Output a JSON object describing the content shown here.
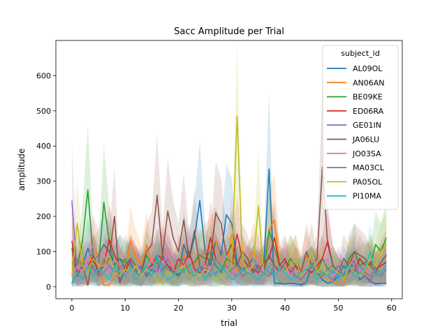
{
  "chart_data": {
    "type": "line",
    "title": "Sacc Amplitude per Trial",
    "xlabel": "trial",
    "ylabel": "amplitude",
    "xlim": [
      -3,
      62
    ],
    "ylim": [
      -34,
      700
    ],
    "xticks": [
      0,
      10,
      20,
      30,
      40,
      50,
      60
    ],
    "yticks": [
      0,
      100,
      200,
      300,
      400,
      500,
      600
    ],
    "grid": false,
    "confidence_band": true,
    "legend": {
      "title": "subject_id",
      "placement": "top-right"
    },
    "x": [
      0,
      1,
      2,
      3,
      4,
      5,
      6,
      7,
      8,
      9,
      10,
      11,
      12,
      13,
      14,
      15,
      16,
      17,
      18,
      19,
      20,
      21,
      22,
      23,
      24,
      25,
      26,
      27,
      28,
      29,
      30,
      31,
      32,
      33,
      34,
      35,
      36,
      37,
      38,
      39,
      40,
      41,
      42,
      43,
      44,
      45,
      46,
      47,
      48,
      49,
      50,
      51,
      52,
      53,
      54,
      55,
      56,
      57,
      58,
      59
    ],
    "series": [
      {
        "name": "AL09OL",
        "color": "#1f77b4",
        "values": [
          10,
          40,
          60,
          110,
          70,
          90,
          120,
          100,
          60,
          80,
          50,
          70,
          40,
          60,
          30,
          50,
          40,
          90,
          60,
          50,
          30,
          120,
          80,
          140,
          245,
          100,
          60,
          130,
          90,
          205,
          180,
          70,
          40,
          60,
          80,
          50,
          60,
          335,
          10,
          10,
          8,
          10,
          8,
          6,
          12,
          60,
          40,
          20,
          10,
          15,
          30,
          60,
          40,
          80,
          20,
          30,
          15,
          8,
          10,
          10
        ]
      },
      {
        "name": "AN06AN",
        "color": "#ff7f0e",
        "values": [
          60,
          50,
          80,
          40,
          110,
          90,
          5,
          5,
          30,
          60,
          40,
          130,
          90,
          60,
          120,
          70,
          50,
          100,
          80,
          60,
          40,
          90,
          50,
          60,
          80,
          100,
          110,
          130,
          80,
          60,
          150,
          40,
          70,
          60,
          100,
          80,
          50,
          160,
          190,
          60,
          40,
          80,
          60,
          50,
          90,
          40,
          60,
          30,
          20,
          15,
          10,
          8,
          80,
          60,
          40,
          30,
          80,
          50,
          60,
          70
        ]
      },
      {
        "name": "BE09KE",
        "color": "#2ca02c",
        "values": [
          70,
          60,
          130,
          275,
          80,
          60,
          240,
          130,
          60,
          80,
          70,
          60,
          50,
          40,
          90,
          60,
          70,
          50,
          60,
          40,
          30,
          50,
          60,
          70,
          90,
          80,
          100,
          60,
          40,
          80,
          70,
          60,
          50,
          40,
          60,
          50,
          40,
          160,
          110,
          60,
          50,
          80,
          60,
          40,
          50,
          60,
          40,
          80,
          50,
          60,
          40,
          30,
          80,
          100,
          60,
          70,
          60,
          120,
          100,
          140
        ]
      },
      {
        "name": "ED06RA",
        "color": "#d62728",
        "values": [
          130,
          40,
          20,
          60,
          80,
          40,
          60,
          135,
          90,
          60,
          40,
          80,
          60,
          40,
          50,
          60,
          90,
          80,
          60,
          40,
          80,
          60,
          100,
          50,
          40,
          60,
          140,
          80,
          60,
          40,
          60,
          150,
          80,
          60,
          50,
          40,
          70,
          80,
          140,
          60,
          80,
          40,
          60,
          30,
          50,
          40,
          60,
          80,
          130,
          60,
          40,
          30,
          50,
          40,
          80,
          60,
          70,
          50,
          60,
          70
        ]
      },
      {
        "name": "GE01IN",
        "color": "#9467bd",
        "values": [
          245,
          40,
          60,
          70,
          50,
          30,
          40,
          60,
          45,
          20,
          40,
          30,
          60,
          50,
          40,
          30,
          60,
          40,
          80,
          50,
          40,
          60,
          30,
          40,
          50,
          60,
          30,
          40,
          50,
          60,
          40,
          30,
          50,
          60,
          40,
          50,
          60,
          40,
          30,
          50,
          60,
          40,
          30,
          20,
          40,
          60,
          50,
          40,
          30,
          20,
          40,
          30,
          50,
          60,
          40,
          30,
          20,
          40,
          30,
          50
        ]
      },
      {
        "name": "JA06LU",
        "color": "#8c564b",
        "values": [
          110,
          30,
          60,
          5,
          90,
          40,
          60,
          80,
          200,
          10,
          60,
          80,
          60,
          40,
          100,
          120,
          260,
          90,
          215,
          140,
          100,
          190,
          80,
          160,
          60,
          40,
          80,
          210,
          180,
          90,
          120,
          60,
          100,
          80,
          40,
          60,
          50,
          90,
          60,
          40,
          70,
          60,
          80,
          40,
          100,
          60,
          80,
          340,
          120,
          60,
          40,
          80,
          60,
          100,
          90,
          80,
          60,
          40,
          70,
          90
        ]
      },
      {
        "name": "JO03SA",
        "color": "#e377c2",
        "values": [
          30,
          60,
          40,
          80,
          120,
          60,
          100,
          40,
          80,
          60,
          40,
          30,
          60,
          40,
          50,
          80,
          40,
          60,
          100,
          50,
          40,
          60,
          80,
          40,
          30,
          60,
          50,
          80,
          60,
          40,
          30,
          60,
          40,
          50,
          60,
          80,
          40,
          60,
          50,
          40,
          60,
          30,
          50,
          40,
          60,
          100,
          40,
          60,
          80,
          30,
          50,
          40,
          60,
          80,
          40,
          60,
          30,
          50,
          40,
          60
        ]
      },
      {
        "name": "MA03CL",
        "color": "#7f7f7f",
        "values": [
          50,
          80,
          60,
          40,
          60,
          30,
          80,
          60,
          40,
          50,
          80,
          60,
          40,
          30,
          60,
          40,
          80,
          60,
          50,
          40,
          60,
          80,
          40,
          30,
          60,
          50,
          40,
          80,
          60,
          40,
          50,
          60,
          30,
          40,
          60,
          50,
          40,
          30,
          60,
          50,
          40,
          60,
          30,
          40,
          50,
          60,
          40,
          30,
          50,
          40,
          60,
          30,
          40,
          50,
          60,
          40,
          30,
          50,
          40,
          60
        ]
      },
      {
        "name": "PA05OL",
        "color": "#bcbd22",
        "values": [
          30,
          180,
          60,
          40,
          80,
          60,
          60,
          90,
          40,
          30,
          50,
          40,
          60,
          30,
          50,
          40,
          20,
          10,
          40,
          30,
          50,
          60,
          30,
          40,
          30,
          50,
          40,
          20,
          30,
          40,
          60,
          485,
          80,
          40,
          60,
          230,
          40,
          60,
          30,
          50,
          40,
          60,
          80,
          30,
          50,
          100,
          40,
          60,
          30,
          50,
          40,
          20,
          60,
          40,
          30,
          50,
          80,
          60,
          100,
          120
        ]
      },
      {
        "name": "PI10MA",
        "color": "#17becf",
        "values": [
          8,
          40,
          20,
          60,
          30,
          50,
          40,
          20,
          60,
          40,
          30,
          50,
          20,
          40,
          60,
          30,
          90,
          40,
          20,
          30,
          50,
          40,
          60,
          30,
          50,
          20,
          40,
          30,
          60,
          40,
          20,
          30,
          50,
          40,
          30,
          20,
          40,
          60,
          30,
          50,
          40,
          20,
          30,
          40,
          50,
          60,
          20,
          40,
          30,
          50,
          20,
          40,
          60,
          30,
          40,
          50,
          100,
          30,
          40,
          60
        ]
      }
    ]
  }
}
